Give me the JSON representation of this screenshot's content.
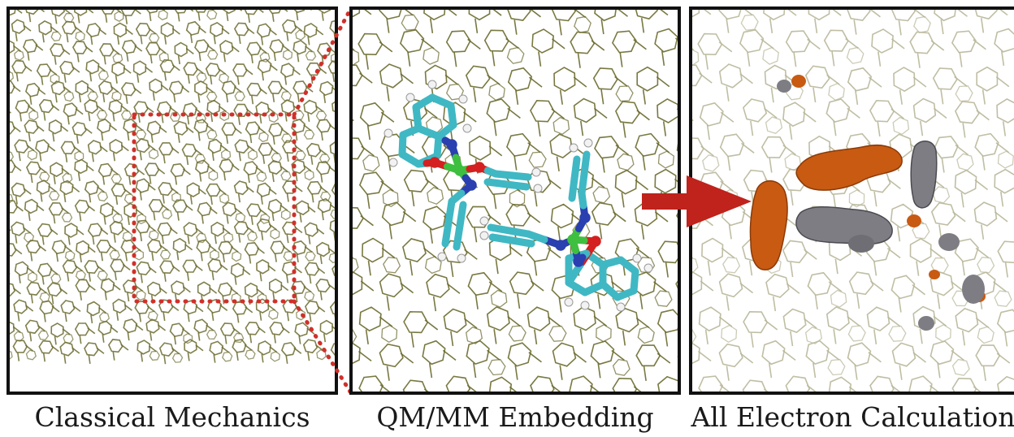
{
  "panels": [
    {
      "caption": "Classical Mechanics"
    },
    {
      "caption": "QM/MM Embedding"
    },
    {
      "caption": "All Electron Calculation"
    }
  ],
  "colors": {
    "lattice": "#6b6a2e",
    "lattice_faint": "#b9b79a",
    "frame": "#111111",
    "highlight_box": "#d0302a",
    "arrow": "#c0221c",
    "carbon": "#3fb8c4",
    "nitrogen": "#2a3fb0",
    "oxygen": "#d42020",
    "metal": "#3fbf3f",
    "hydrogen": "#f2f2f2",
    "density_orange": "#c85a12",
    "density_gray": "#7d7d83"
  }
}
